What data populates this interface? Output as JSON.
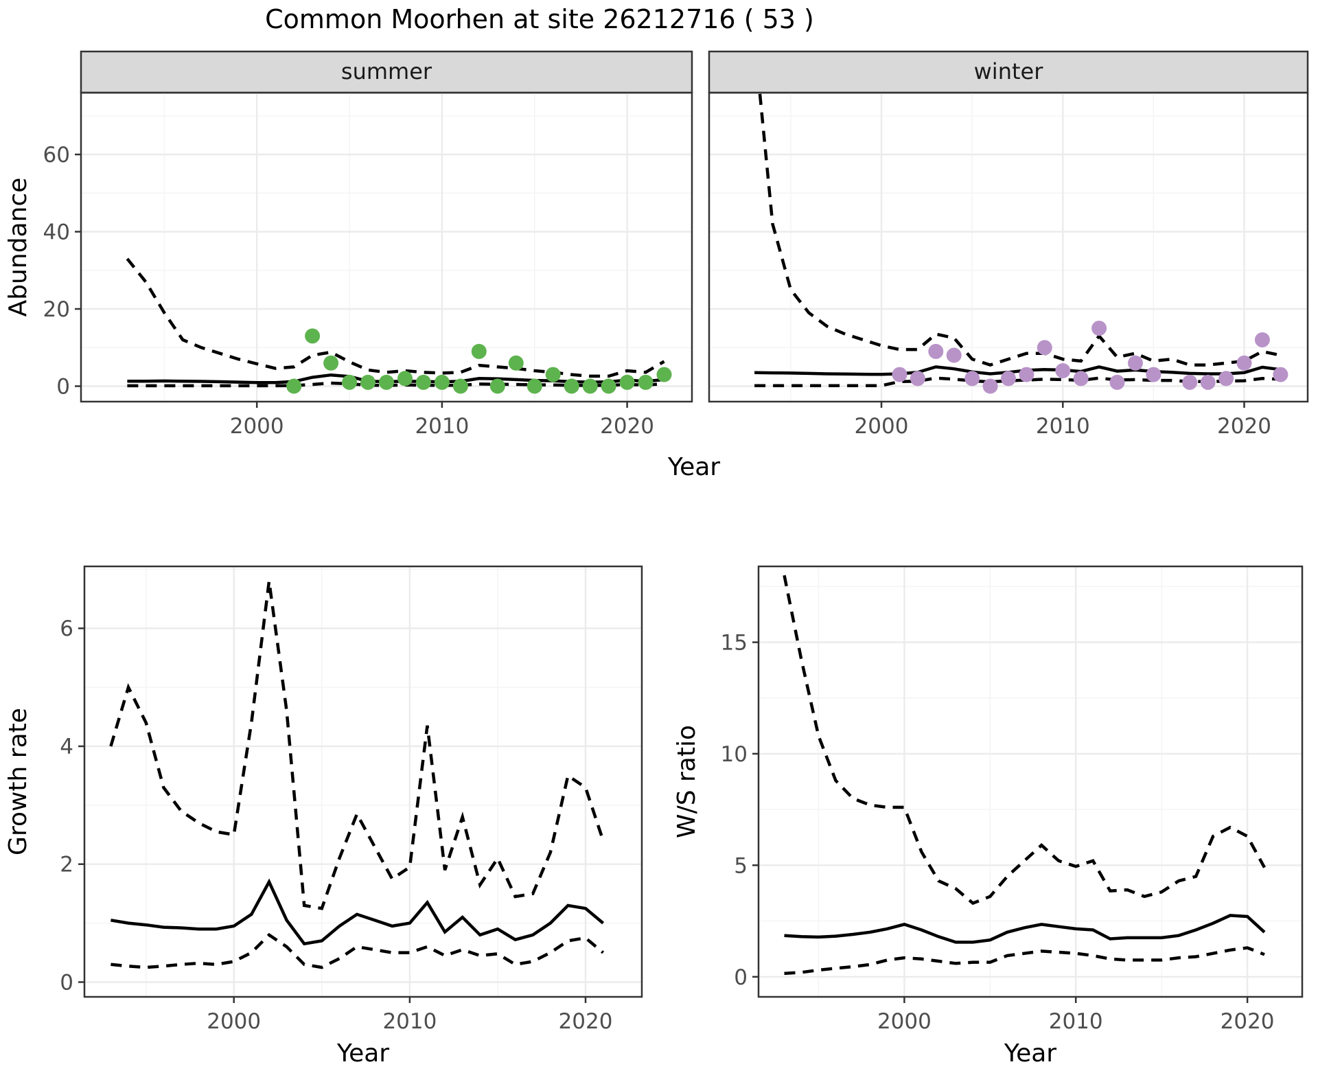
{
  "title": "Common Moorhen at site 26212716 ( 53 )",
  "colors": {
    "summer_points": "#5DB34D",
    "winter_points": "#B893C8",
    "line": "#000000",
    "grid_major": "#EBEBEB",
    "grid_minor": "#F4F4F4",
    "strip_bg": "#D9D9D9",
    "panel_border": "#333333",
    "tick_text": "#4D4D4D"
  },
  "chart_data": [
    {
      "id": "abundance",
      "type": "line",
      "xlabel": "Year",
      "ylabel": "Abundance",
      "legend": "none",
      "grid": true,
      "xlim": [
        1990.5,
        2023.5
      ],
      "xticks": [
        2000,
        2010,
        2020
      ],
      "ylim": [
        -4,
        76
      ],
      "yticks": [
        0,
        20,
        40,
        60
      ],
      "x": [
        1993,
        1994,
        1995,
        1996,
        1997,
        1998,
        1999,
        2000,
        2001,
        2002,
        2003,
        2004,
        2005,
        2006,
        2007,
        2008,
        2009,
        2010,
        2011,
        2012,
        2013,
        2014,
        2015,
        2016,
        2017,
        2018,
        2019,
        2020,
        2021,
        2022
      ],
      "facets": [
        {
          "label": "summer",
          "point_color_key": "summer_points",
          "fit": [
            1.3,
            1.3,
            1.35,
            1.3,
            1.25,
            1.15,
            1.05,
            0.95,
            0.95,
            1.2,
            2.3,
            2.9,
            2.5,
            1.3,
            1.15,
            1.3,
            1.2,
            1.15,
            1.25,
            2.0,
            1.9,
            1.7,
            1.5,
            1.4,
            1.15,
            1.05,
            1.1,
            1.6,
            1.25,
            1.7
          ],
          "upper_ci": [
            33,
            27,
            19,
            12,
            10,
            8.5,
            7,
            5.8,
            4.6,
            5.0,
            8.0,
            8.8,
            6.3,
            4.2,
            3.6,
            4.0,
            3.6,
            3.4,
            3.6,
            5.4,
            5.0,
            4.6,
            4.0,
            3.6,
            3.0,
            2.6,
            2.6,
            4.0,
            3.6,
            6.4
          ],
          "lower_ci": [
            0.1,
            0.1,
            0.1,
            0.1,
            0.1,
            0.1,
            0.1,
            0.1,
            0.1,
            0.15,
            0.45,
            0.8,
            0.6,
            0.25,
            0.2,
            0.3,
            0.25,
            0.2,
            0.25,
            0.55,
            0.5,
            0.45,
            0.35,
            0.3,
            0.2,
            0.2,
            0.2,
            0.45,
            0.3,
            0.6
          ],
          "points_x": [
            2002,
            2003,
            2004,
            2005,
            2006,
            2007,
            2008,
            2009,
            2010,
            2011,
            2012,
            2013,
            2014,
            2015,
            2016,
            2017,
            2018,
            2019,
            2020,
            2021,
            2022
          ],
          "points_y": [
            0,
            13,
            6,
            1,
            1,
            1,
            2,
            1,
            1,
            0,
            9,
            0,
            6,
            0,
            3,
            0,
            0,
            0,
            1,
            1,
            3
          ]
        },
        {
          "label": "winter",
          "point_color_key": "winter_points",
          "fit": [
            3.5,
            3.45,
            3.4,
            3.3,
            3.2,
            3.15,
            3.1,
            3.05,
            3.2,
            3.6,
            5.0,
            4.5,
            3.7,
            3.2,
            3.6,
            4.1,
            4.3,
            4.2,
            3.8,
            5.0,
            3.9,
            4.2,
            3.8,
            3.6,
            3.3,
            3.2,
            3.2,
            3.5,
            4.9,
            4.3
          ],
          "upper_ci": [
            90,
            42,
            25,
            19,
            15.5,
            13.5,
            12,
            10.5,
            9.5,
            9.5,
            13.5,
            12.5,
            7.0,
            5.5,
            7.0,
            8.5,
            8.5,
            7.0,
            6.5,
            13.0,
            7.5,
            8.5,
            6.5,
            7.0,
            5.5,
            5.5,
            6.0,
            6.5,
            9.0,
            8.0
          ],
          "lower_ci": [
            0.15,
            0.15,
            0.15,
            0.15,
            0.15,
            0.15,
            0.15,
            0.15,
            1.2,
            1.3,
            2.1,
            1.8,
            1.4,
            1.1,
            1.4,
            1.6,
            1.8,
            1.7,
            1.5,
            2.1,
            1.6,
            1.7,
            1.5,
            1.5,
            1.2,
            1.2,
            1.3,
            1.4,
            2.0,
            1.8
          ],
          "points_x": [
            2001,
            2002,
            2003,
            2004,
            2005,
            2006,
            2007,
            2008,
            2009,
            2010,
            2011,
            2012,
            2013,
            2014,
            2015,
            2017,
            2018,
            2019,
            2020,
            2021,
            2022
          ],
          "points_y": [
            3,
            2,
            9,
            8,
            2,
            0,
            2,
            3,
            10,
            4,
            2,
            15,
            1,
            6,
            3,
            1,
            1,
            2,
            6,
            12,
            3
          ]
        }
      ]
    },
    {
      "id": "growth_rate",
      "type": "line",
      "xlabel": "Year",
      "ylabel": "Growth rate",
      "grid": true,
      "xlim": [
        1991.5,
        2023.2
      ],
      "xticks": [
        2000,
        2010,
        2020
      ],
      "ylim": [
        -0.25,
        7.05
      ],
      "yticks": [
        0,
        2,
        4,
        6
      ],
      "x": [
        1993,
        1994,
        1995,
        1996,
        1997,
        1998,
        1999,
        2000,
        2001,
        2002,
        2003,
        2004,
        2005,
        2006,
        2007,
        2008,
        2009,
        2010,
        2011,
        2012,
        2013,
        2014,
        2015,
        2016,
        2017,
        2018,
        2019,
        2020,
        2021
      ],
      "fit": [
        1.05,
        1.0,
        0.97,
        0.93,
        0.92,
        0.9,
        0.9,
        0.95,
        1.15,
        1.7,
        1.05,
        0.65,
        0.7,
        0.95,
        1.15,
        1.05,
        0.95,
        1.0,
        1.35,
        0.85,
        1.1,
        0.8,
        0.9,
        0.72,
        0.8,
        1.0,
        1.3,
        1.25,
        1.0
      ],
      "upper_ci": [
        4.0,
        5.0,
        4.4,
        3.3,
        2.9,
        2.7,
        2.55,
        2.5,
        4.4,
        6.8,
        4.6,
        1.3,
        1.25,
        2.1,
        2.85,
        2.3,
        1.75,
        1.95,
        4.35,
        1.9,
        2.8,
        1.65,
        2.1,
        1.45,
        1.5,
        2.2,
        3.5,
        3.3,
        2.4
      ],
      "lower_ci": [
        0.3,
        0.27,
        0.25,
        0.27,
        0.3,
        0.32,
        0.3,
        0.35,
        0.5,
        0.8,
        0.6,
        0.3,
        0.25,
        0.4,
        0.6,
        0.55,
        0.5,
        0.5,
        0.6,
        0.45,
        0.55,
        0.45,
        0.48,
        0.3,
        0.35,
        0.5,
        0.7,
        0.75,
        0.5
      ]
    },
    {
      "id": "ws_ratio",
      "type": "line",
      "xlabel": "Year",
      "ylabel": "W/S ratio",
      "grid": true,
      "xlim": [
        1991.5,
        2023.2
      ],
      "xticks": [
        2000,
        2010,
        2020
      ],
      "ylim": [
        -0.9,
        18.4
      ],
      "yticks": [
        0,
        5,
        10,
        15
      ],
      "x": [
        1993,
        1994,
        1995,
        1996,
        1997,
        1998,
        1999,
        2000,
        2001,
        2002,
        2003,
        2004,
        2005,
        2006,
        2007,
        2008,
        2009,
        2010,
        2011,
        2012,
        2013,
        2014,
        2015,
        2016,
        2017,
        2018,
        2019,
        2020,
        2021
      ],
      "fit": [
        1.85,
        1.8,
        1.78,
        1.82,
        1.9,
        2.0,
        2.15,
        2.35,
        2.1,
        1.8,
        1.55,
        1.55,
        1.65,
        2.0,
        2.2,
        2.35,
        2.25,
        2.15,
        2.1,
        1.7,
        1.75,
        1.75,
        1.75,
        1.85,
        2.1,
        2.4,
        2.75,
        2.7,
        2.0
      ],
      "upper_ci": [
        18.0,
        14.2,
        10.8,
        8.8,
        8.0,
        7.7,
        7.6,
        7.6,
        5.6,
        4.3,
        3.95,
        3.3,
        3.6,
        4.5,
        5.2,
        5.9,
        5.2,
        4.95,
        5.2,
        3.85,
        3.9,
        3.6,
        3.8,
        4.3,
        4.5,
        6.3,
        6.7,
        6.3,
        4.9
      ],
      "lower_ci": [
        0.15,
        0.2,
        0.3,
        0.38,
        0.45,
        0.55,
        0.75,
        0.85,
        0.8,
        0.7,
        0.6,
        0.65,
        0.65,
        0.95,
        1.05,
        1.15,
        1.1,
        1.05,
        0.95,
        0.8,
        0.75,
        0.75,
        0.75,
        0.85,
        0.9,
        1.05,
        1.2,
        1.3,
        1.0
      ]
    }
  ]
}
